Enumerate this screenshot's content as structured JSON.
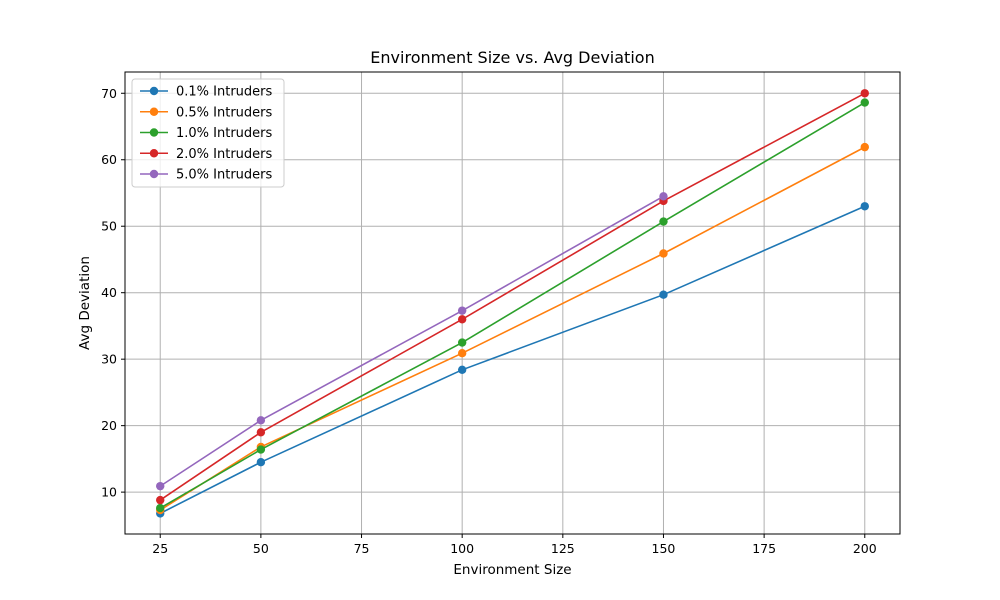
{
  "chart_data": {
    "type": "line",
    "title": "Environment Size vs. Avg Deviation",
    "xlabel": "Environment Size",
    "ylabel": "Avg Deviation",
    "xlim": [
      16.25,
      208.75
    ],
    "ylim": [
      3.7,
      73.2
    ],
    "xticks": [
      25,
      50,
      75,
      100,
      125,
      150,
      175,
      200
    ],
    "yticks": [
      10,
      20,
      30,
      40,
      50,
      60,
      70
    ],
    "grid": true,
    "legend_position": "upper-left",
    "x": [
      25,
      50,
      100,
      150,
      200
    ],
    "series": [
      {
        "name": "0.1% Intruders",
        "color": "#1f77b4",
        "values": [
          6.8,
          14.5,
          28.4,
          39.7,
          53.0
        ]
      },
      {
        "name": "0.5% Intruders",
        "color": "#ff7f0e",
        "values": [
          7.3,
          16.8,
          30.9,
          45.9,
          61.9
        ]
      },
      {
        "name": "1.0% Intruders",
        "color": "#2ca02c",
        "values": [
          7.6,
          16.4,
          32.5,
          50.7,
          68.6
        ]
      },
      {
        "name": "2.0% Intruders",
        "color": "#d62728",
        "values": [
          8.8,
          19.0,
          36.0,
          53.8,
          70.0
        ]
      },
      {
        "name": "5.0% Intruders",
        "color": "#9467bd",
        "values": [
          10.9,
          20.8,
          37.3,
          54.5,
          null
        ]
      }
    ]
  }
}
